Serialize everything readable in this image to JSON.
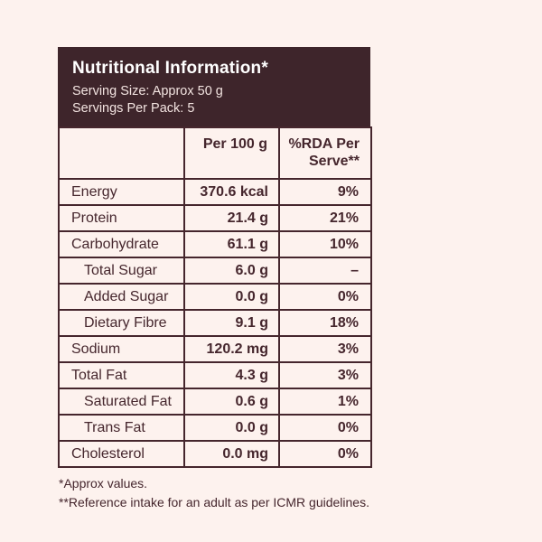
{
  "colors": {
    "page_background": "#fdf2ee",
    "panel_background": "#3e252b",
    "panel_text": "#ffffff",
    "table_text": "#45262d",
    "table_border": "#45262d"
  },
  "header": {
    "title": "Nutritional Information*",
    "serving_size": "Serving Size: Approx 50 g",
    "servings_per_pack": "Servings Per Pack: 5"
  },
  "table": {
    "columns": {
      "nutrient": "",
      "per_100g": "Per 100 g",
      "rda_per_serve": "%RDA Per Serve**"
    },
    "rows": [
      {
        "label": "Energy",
        "indent": false,
        "per100": "370.6 kcal",
        "rda": "9%"
      },
      {
        "label": "Protein",
        "indent": false,
        "per100": "21.4 g",
        "rda": "21%"
      },
      {
        "label": "Carbohydrate",
        "indent": false,
        "per100": "61.1 g",
        "rda": "10%"
      },
      {
        "label": "Total Sugar",
        "indent": true,
        "per100": "6.0 g",
        "rda": "–"
      },
      {
        "label": "Added Sugar",
        "indent": true,
        "per100": "0.0 g",
        "rda": "0%"
      },
      {
        "label": "Dietary Fibre",
        "indent": true,
        "per100": "9.1 g",
        "rda": "18%"
      },
      {
        "label": "Sodium",
        "indent": false,
        "per100": "120.2 mg",
        "rda": "3%"
      },
      {
        "label": "Total Fat",
        "indent": false,
        "per100": "4.3 g",
        "rda": "3%"
      },
      {
        "label": "Saturated Fat",
        "indent": true,
        "per100": "0.6 g",
        "rda": "1%"
      },
      {
        "label": "Trans Fat",
        "indent": true,
        "per100": "0.0 g",
        "rda": "0%"
      },
      {
        "label": "Cholesterol",
        "indent": false,
        "per100": "0.0 mg",
        "rda": "0%"
      }
    ]
  },
  "footnotes": {
    "approx": "*Approx values.",
    "reference": "**Reference intake for an adult as per ICMR guidelines."
  }
}
